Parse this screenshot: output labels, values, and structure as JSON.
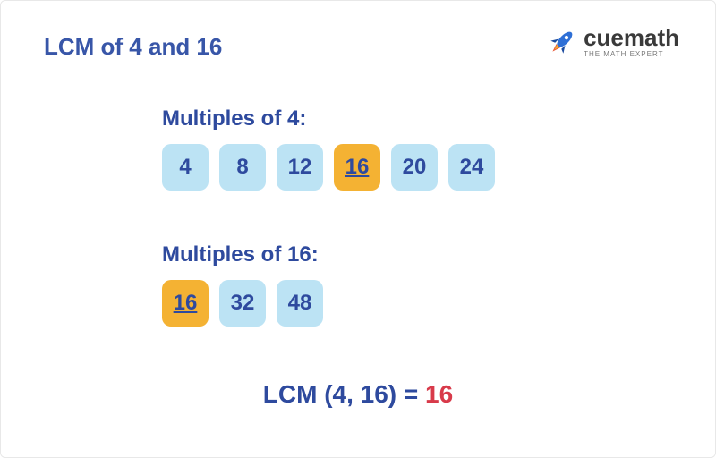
{
  "colors": {
    "primary": "#2e4a9e",
    "title": "#3856a8",
    "pill_bg": "#bce3f4",
    "pill_text": "#2e4a9e",
    "highlight_bg": "#f4b233",
    "highlight_text": "#2e4a9e",
    "answer": "#d83a4a",
    "logo_text": "#3a3a3a",
    "logo_tag": "#7a7a7a",
    "rocket_body": "#2e6fd6",
    "rocket_fin": "#1a4a9e",
    "rocket_flame1": "#f4b233",
    "rocket_flame2": "#e85a3a"
  },
  "title": "LCM of 4 and 16",
  "logo": {
    "brand": "cuemath",
    "tagline": "THE MATH EXPERT"
  },
  "sectionA": {
    "label": "Multiples of 4:",
    "multiples": [
      {
        "value": "4",
        "highlight": false
      },
      {
        "value": "8",
        "highlight": false
      },
      {
        "value": "12",
        "highlight": false
      },
      {
        "value": "16",
        "highlight": true
      },
      {
        "value": "20",
        "highlight": false
      },
      {
        "value": "24",
        "highlight": false
      }
    ]
  },
  "sectionB": {
    "label": "Multiples of 16:",
    "multiples": [
      {
        "value": "16",
        "highlight": true
      },
      {
        "value": "32",
        "highlight": false
      },
      {
        "value": "48",
        "highlight": false
      }
    ]
  },
  "result": {
    "label": "LCM (4, 16) = ",
    "answer": "16"
  }
}
